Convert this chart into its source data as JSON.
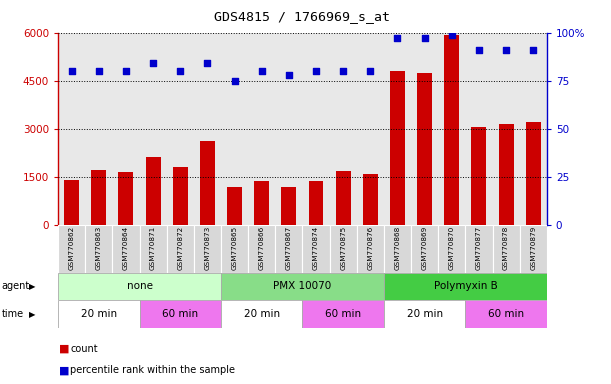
{
  "title": "GDS4815 / 1766969_s_at",
  "samples": [
    "GSM770862",
    "GSM770863",
    "GSM770864",
    "GSM770871",
    "GSM770872",
    "GSM770873",
    "GSM770865",
    "GSM770866",
    "GSM770867",
    "GSM770874",
    "GSM770875",
    "GSM770876",
    "GSM770868",
    "GSM770869",
    "GSM770870",
    "GSM770877",
    "GSM770878",
    "GSM770879"
  ],
  "counts": [
    1390,
    1720,
    1650,
    2100,
    1800,
    2600,
    1170,
    1350,
    1170,
    1350,
    1680,
    1580,
    4800,
    4750,
    5920,
    3050,
    3150,
    3200
  ],
  "percentiles": [
    80,
    80,
    80,
    84,
    80,
    84,
    75,
    80,
    78,
    80,
    80,
    80,
    97,
    97,
    99,
    91,
    91,
    91
  ],
  "bar_color": "#cc0000",
  "dot_color": "#0000cc",
  "ylim_left": [
    0,
    6000
  ],
  "ylim_right": [
    0,
    100
  ],
  "yticks_left": [
    0,
    1500,
    3000,
    4500,
    6000
  ],
  "yticks_right": [
    0,
    25,
    50,
    75,
    100
  ],
  "col_bg_color": "#e8e8e8",
  "agent_groups": [
    {
      "label": "none",
      "start": 0,
      "end": 6,
      "color": "#ccffcc"
    },
    {
      "label": "PMX 10070",
      "start": 6,
      "end": 12,
      "color": "#88dd88"
    },
    {
      "label": "Polymyxin B",
      "start": 12,
      "end": 18,
      "color": "#44cc44"
    }
  ],
  "time_groups": [
    {
      "label": "20 min",
      "start": 0,
      "end": 3,
      "color": "#ffffff"
    },
    {
      "label": "60 min",
      "start": 3,
      "end": 6,
      "color": "#ee77ee"
    },
    {
      "label": "20 min",
      "start": 6,
      "end": 9,
      "color": "#ffffff"
    },
    {
      "label": "60 min",
      "start": 9,
      "end": 12,
      "color": "#ee77ee"
    },
    {
      "label": "20 min",
      "start": 12,
      "end": 15,
      "color": "#ffffff"
    },
    {
      "label": "60 min",
      "start": 15,
      "end": 18,
      "color": "#ee77ee"
    }
  ],
  "legend_count_label": "count",
  "legend_pct_label": "percentile rank within the sample"
}
